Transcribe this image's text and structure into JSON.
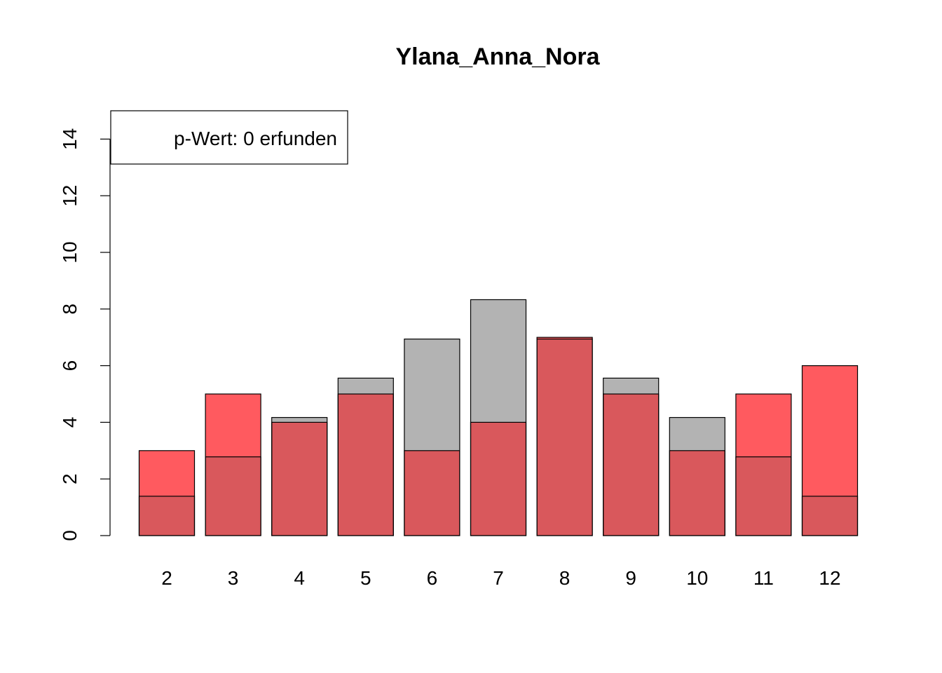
{
  "chart_data": {
    "type": "bar",
    "title": "Ylana_Anna_Nora",
    "xlabel": "",
    "ylabel": "",
    "categories": [
      "2",
      "3",
      "4",
      "5",
      "6",
      "7",
      "8",
      "9",
      "10",
      "11",
      "12"
    ],
    "series": [
      {
        "values": [
          1.39,
          2.78,
          4.17,
          5.56,
          6.94,
          8.33,
          6.94,
          5.56,
          4.17,
          2.78,
          1.39
        ],
        "color": "#b3b3b3"
      },
      {
        "values": [
          3,
          5,
          4,
          5,
          3,
          4,
          7,
          5,
          3,
          5,
          6
        ],
        "color": "#ff5a5f"
      }
    ],
    "series_overlay": true,
    "overlay_color": "#d9585c",
    "ylim": [
      0,
      15
    ],
    "yticks": [
      "0",
      "2",
      "4",
      "6",
      "8",
      "10",
      "12",
      "14"
    ],
    "grid": false,
    "legend": {
      "position": "top-left",
      "text": "p-Wert: 0 erfunden"
    }
  }
}
